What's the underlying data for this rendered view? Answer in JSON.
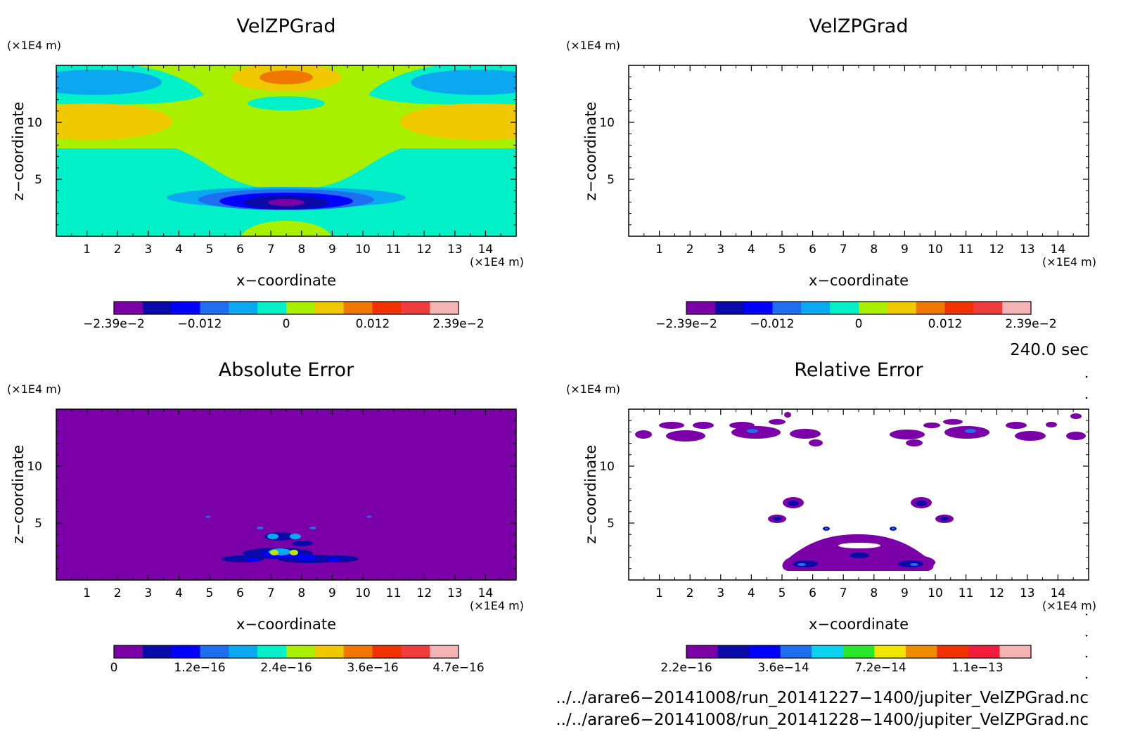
{
  "panels": [
    {
      "title": "VelZPGrad",
      "unit": "(×1E4 m)",
      "ylabel": "z−coordinate",
      "xlabel": "x−coordinate",
      "xunit": "(×1E4 m)",
      "colorbar_labels": [
        "−2.39e−2",
        "−0.012",
        "0",
        "0.012",
        "2.39e−2"
      ]
    },
    {
      "title": "VelZPGrad",
      "unit": "(×1E4 m)",
      "ylabel": "z−coordinate",
      "xlabel": "x−coordinate",
      "xunit": "(×1E4 m)",
      "colorbar_labels": [
        "−2.39e−2",
        "−0.012",
        "0",
        "0.012",
        "2.39e−2"
      ]
    },
    {
      "title": "Absolute Error",
      "unit": "(×1E4 m)",
      "ylabel": "z−coordinate",
      "xlabel": "x−coordinate",
      "xunit": "(×1E4 m)",
      "colorbar_labels": [
        "0",
        "1.2e−16",
        "2.4e−16",
        "3.6e−16",
        "4.7e−16"
      ]
    },
    {
      "title": "Relative Error",
      "unit": "(×1E4 m)",
      "ylabel": "z−coordinate",
      "xlabel": "x−coordinate",
      "xunit": "(×1E4 m)",
      "colorbar_labels": [
        "2.2e−16",
        "3.6e−14",
        "7.2e−14",
        "1.1e−13"
      ]
    }
  ],
  "time_label": "240.0 sec",
  "footer": [
    "../../arare6−20141008/run_20141227−1400/jupiter_VelZPGrad.nc",
    "../../arare6−20141008/run_20141228−1400/jupiter_VelZPGrad.nc"
  ],
  "colors": {
    "velz_scale": [
      "#7b00a8",
      "#0a0aa8",
      "#0000ff",
      "#1e6ef0",
      "#0aa8f0",
      "#00f0c8",
      "#a8f000",
      "#f0c800",
      "#f07800",
      "#f03200",
      "#f03c3c",
      "#f5b4b4"
    ],
    "abs_scale": [
      "#7b00a8",
      "#0a0aa8",
      "#0000ff",
      "#1e6ef0",
      "#0aa8f0",
      "#00f0c8",
      "#a8f000",
      "#f0c800",
      "#f07800",
      "#f03200",
      "#f03c3c",
      "#f5b4b4"
    ],
    "rel_scale": [
      "#7b00a8",
      "#0a0aa8",
      "#0000ff",
      "#1e6ef0",
      "#0ad2f0",
      "#28e628",
      "#f0e600",
      "#f08c00",
      "#f03200",
      "#f01e3c",
      "#f5b4b4"
    ]
  },
  "chart_data": [
    {
      "type": "heatmap",
      "title": "VelZPGrad",
      "xlabel": "x−coordinate",
      "ylabel": "z−coordinate",
      "xlim": [
        0,
        15
      ],
      "ylim": [
        0,
        15
      ],
      "xticks": [
        "1",
        "2",
        "3",
        "4",
        "5",
        "6",
        "7",
        "8",
        "9",
        "10",
        "11",
        "12",
        "13",
        "14"
      ],
      "yticks": [
        "5",
        "10"
      ],
      "color_range": [
        -0.0239,
        0.0239
      ]
    },
    {
      "type": "heatmap",
      "title": "VelZPGrad",
      "xlabel": "x−coordinate",
      "ylabel": "z−coordinate",
      "xlim": [
        0,
        15
      ],
      "ylim": [
        0,
        15
      ],
      "xticks": [
        "1",
        "2",
        "3",
        "4",
        "5",
        "6",
        "7",
        "8",
        "9",
        "10",
        "11",
        "12",
        "13",
        "14"
      ],
      "yticks": [
        "5",
        "10"
      ],
      "color_range": [
        -0.0239,
        0.0239
      ]
    },
    {
      "type": "heatmap",
      "title": "Absolute Error",
      "xlabel": "x−coordinate",
      "ylabel": "z−coordinate",
      "xlim": [
        0,
        15
      ],
      "ylim": [
        0,
        15
      ],
      "xticks": [
        "1",
        "2",
        "3",
        "4",
        "5",
        "6",
        "7",
        "8",
        "9",
        "10",
        "11",
        "12",
        "13",
        "14"
      ],
      "yticks": [
        "5",
        "10"
      ],
      "color_range": [
        0,
        4.7e-16
      ]
    },
    {
      "type": "heatmap",
      "title": "Relative Error",
      "xlabel": "x−coordinate",
      "ylabel": "z−coordinate",
      "xlim": [
        0,
        15
      ],
      "ylim": [
        0,
        15
      ],
      "xticks": [
        "1",
        "2",
        "3",
        "4",
        "5",
        "6",
        "7",
        "8",
        "9",
        "10",
        "11",
        "12",
        "13",
        "14"
      ],
      "yticks": [
        "5",
        "10"
      ],
      "color_range": [
        2.2e-16,
        1.1e-13
      ]
    }
  ]
}
